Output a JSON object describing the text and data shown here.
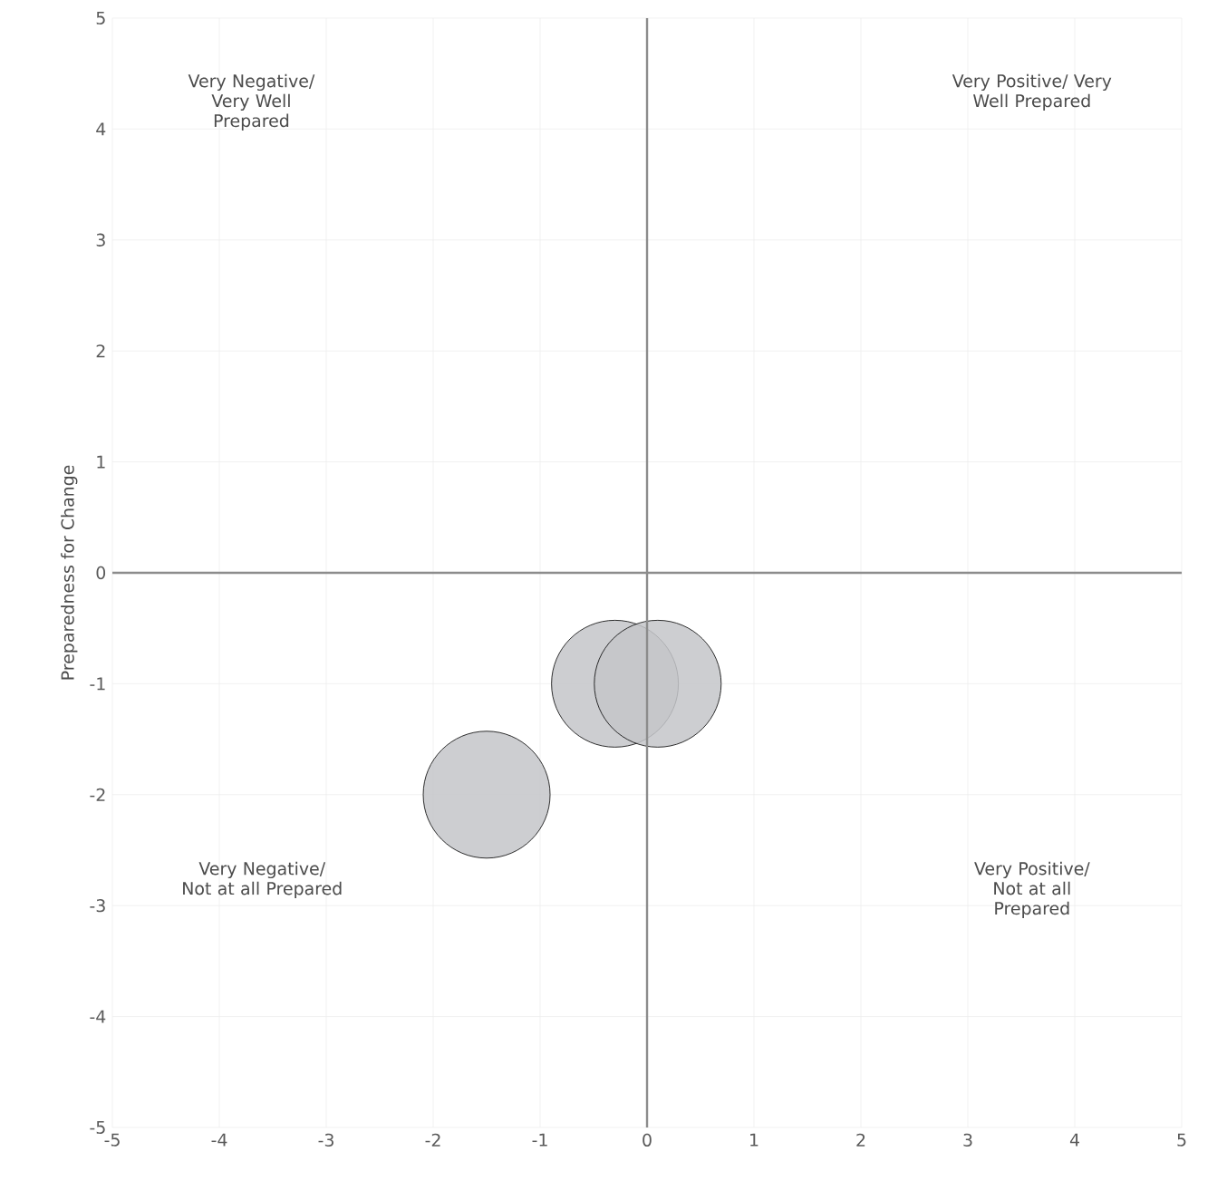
{
  "chart_data": {
    "type": "bubble",
    "ylabel": "Preparedness for Change",
    "x": [
      -1.5,
      -0.3,
      0.1
    ],
    "values": [
      -2,
      -1,
      -1
    ],
    "sizes": [
      1,
      1,
      1
    ],
    "color": "#c4c6c9",
    "xlim": [
      -5,
      5
    ],
    "ylim": [
      -5,
      5
    ],
    "xticks": [
      -5,
      -4,
      -3,
      -2,
      -1,
      0,
      1,
      2,
      3,
      4,
      5
    ],
    "yticks": [
      -5,
      -4,
      -3,
      -2,
      -1,
      0,
      1,
      2,
      3,
      4,
      5
    ],
    "grid": true,
    "marker": "circle",
    "annotations": [
      "Very Negative/ Very Well Prepared",
      "Very Positive/ Very Well Prepared",
      "Very Negative/ Not at all Prepared",
      "Very Positive/ Not at all Prepared"
    ]
  }
}
